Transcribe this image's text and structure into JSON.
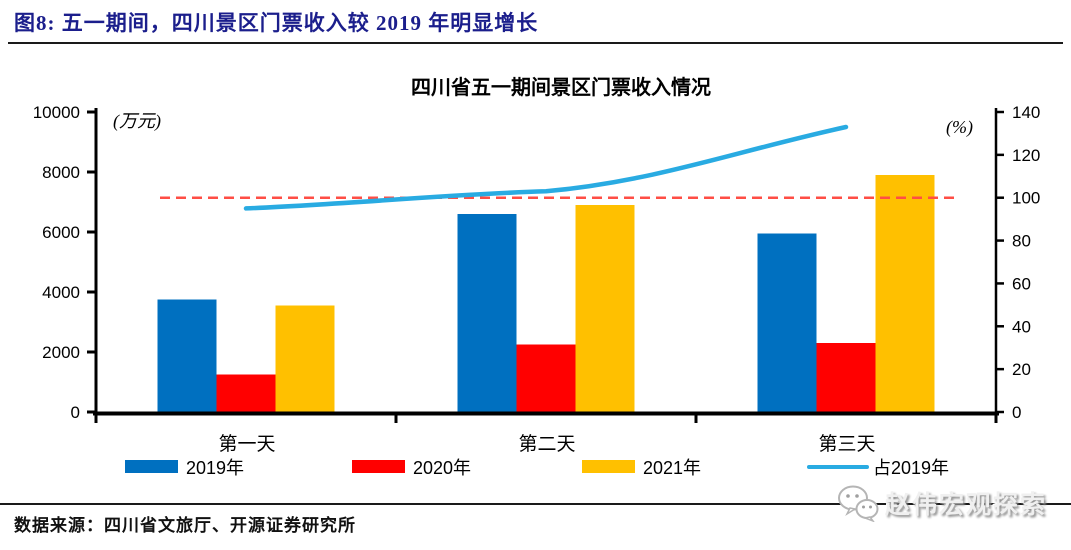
{
  "header": {
    "title": "图8:  五一期间，四川景区门票收入较 2019 年明显增长"
  },
  "footer": {
    "source": "数据来源：四川省文旅厅、开源证券研究所"
  },
  "watermark": {
    "icon": "wechat-icon",
    "text": "赵伟宏观探索"
  },
  "colors": {
    "header_title": "#1b1e8c",
    "bar_2019": "#0070C0",
    "bar_2020": "#FF0000",
    "bar_2021": "#FFC000",
    "ratio_line": "#29ABE2",
    "reference_line": "#FF4E45",
    "axis": "#000000"
  },
  "chart_data": {
    "type": "bar",
    "title": "四川省五一期间景区门票收入情况",
    "categories": [
      "第一天",
      "第二天",
      "第三天"
    ],
    "series": [
      {
        "name": "2019年",
        "type": "bar",
        "axis": "left",
        "color": "#0070C0",
        "values": [
          3750,
          6600,
          5950
        ]
      },
      {
        "name": "2020年",
        "type": "bar",
        "axis": "left",
        "color": "#FF0000",
        "values": [
          1250,
          2250,
          2300
        ]
      },
      {
        "name": "2021年",
        "type": "bar",
        "axis": "left",
        "color": "#FFC000",
        "values": [
          3550,
          6900,
          7900
        ]
      },
      {
        "name": "占2019年",
        "type": "line",
        "axis": "right",
        "color": "#29ABE2",
        "values": [
          95,
          103,
          133
        ]
      }
    ],
    "reference_line": {
      "axis": "right",
      "value": 100,
      "color": "#FF4E45",
      "style": "dashed"
    },
    "left_axis": {
      "label": "(万元)",
      "min": 0,
      "max": 10000,
      "step": 2000
    },
    "right_axis": {
      "label": "(%)",
      "min": 0,
      "max": 140,
      "step": 20
    },
    "grid": false,
    "legend_position": "bottom"
  }
}
